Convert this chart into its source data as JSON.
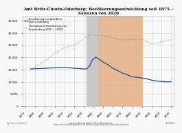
{
  "title_line1": "Amt Britz-Chorin-Oderberg: Bevölkerungsentwicklung seit 1875 -",
  "title_line2": "Grenzen von 2020",
  "ylabel_ticks": [
    "0",
    "5.000",
    "10.000",
    "15.000",
    "20.000",
    "25.000",
    "30.000",
    "35.000"
  ],
  "yticks": [
    0,
    5000,
    10000,
    15000,
    20000,
    25000,
    30000,
    35000
  ],
  "xticks": [
    1870,
    1880,
    1890,
    1900,
    1910,
    1920,
    1930,
    1940,
    1950,
    1960,
    1970,
    1980,
    1990,
    2000,
    2010,
    2020
  ],
  "xlim": [
    1867,
    2023
  ],
  "ylim": [
    0,
    37000
  ],
  "nazi_start": 1933,
  "nazi_end": 1945,
  "communist_start": 1945,
  "communist_end": 1990,
  "nazi_color": "#c8c8c8",
  "communist_color": "#e8b890",
  "blue_line_color": "#1a4a9a",
  "dotted_line_color": "#888888",
  "legend_label1": "Bevölkerung von Amt Britz-\nChorin-Oderberg",
  "legend_label2": "Normalisierte Bevölkerung von\nBrandenburg 1875 = 15000",
  "source_text": "Sources: Amt für Statistik Berlin-Brandenburg",
  "source_text2": "Historische Gemeindestatistiken und Wanderung der Integration im Land Brandenburg",
  "footer_left": "by: Timm G. Gliesche 1",
  "footer_right": "01.01.2021",
  "blue_years": [
    1875,
    1880,
    1885,
    1890,
    1895,
    1900,
    1905,
    1910,
    1915,
    1920,
    1925,
    1930,
    1933,
    1936,
    1939,
    1942,
    1945,
    1950,
    1955,
    1960,
    1965,
    1970,
    1975,
    1980,
    1985,
    1990,
    1995,
    2000,
    2005,
    2010,
    2015,
    2020
  ],
  "blue_values": [
    15200,
    15300,
    15400,
    15500,
    15600,
    15700,
    15750,
    15800,
    15700,
    15500,
    15400,
    15200,
    15200,
    16500,
    19000,
    20000,
    19500,
    18000,
    17000,
    15500,
    14500,
    13500,
    12800,
    12000,
    11800,
    11500,
    11200,
    10600,
    10300,
    10100,
    9900,
    10000
  ],
  "dot_years": [
    1875,
    1880,
    1885,
    1890,
    1895,
    1900,
    1905,
    1910,
    1915,
    1920,
    1925,
    1930,
    1933,
    1936,
    1939,
    1942,
    1945,
    1950,
    1955,
    1960,
    1965,
    1970,
    1975,
    1980,
    1985,
    1990,
    1995,
    2000,
    2005,
    2010,
    2015,
    2020
  ],
  "dot_values": [
    15000,
    16200,
    17200,
    18500,
    20000,
    21500,
    22800,
    24000,
    24500,
    25000,
    26000,
    27500,
    28500,
    29200,
    29500,
    29200,
    29000,
    28800,
    28500,
    28000,
    27500,
    27000,
    27200,
    27300,
    27200,
    27500,
    26500,
    25500,
    25800,
    26200,
    26800,
    27200
  ],
  "background_color": "#f8f8f8",
  "grid_color": "#cccccc"
}
